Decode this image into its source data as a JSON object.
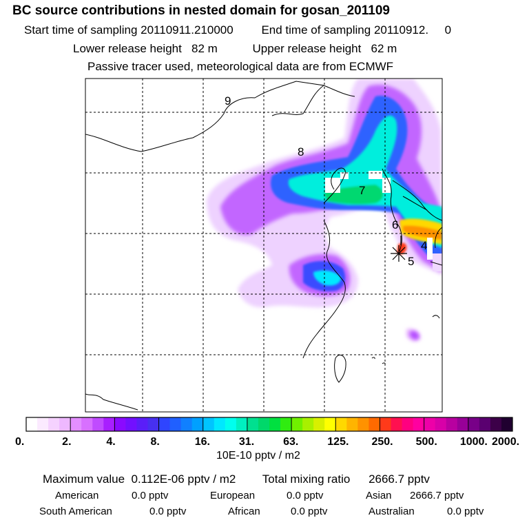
{
  "header": {
    "title": "BC  source contributions in nested domain for gosan_201109",
    "start_label": "Start time of sampling",
    "start_value": "20110911.210000",
    "end_label": "End time of sampling",
    "end_value": "20110912.     0",
    "lower_label": "Lower release height",
    "lower_value": "82 m",
    "upper_label": "Upper release height",
    "upper_value": "62 m",
    "tracer_note": "Passive tracer used, meteorological data are from ECMWF"
  },
  "map": {
    "trajectory_labels": [
      "9",
      "8",
      "7",
      "6",
      "4",
      "5"
    ],
    "receptor_icon": "star-marker-icon"
  },
  "chart_data": {
    "type": "heatmap",
    "title": "BC  source contributions in nested domain for gosan_201109",
    "colorbar_ticks": [
      "0.",
      "2.",
      "4.",
      "8.",
      "16.",
      "31.",
      "63.",
      "125.",
      "250.",
      "500.",
      "1000.",
      "2000."
    ],
    "colorbar_colors": [
      "#ffffff",
      "#fbeaff",
      "#f5d2ff",
      "#eeb8ff",
      "#e38fff",
      "#d870ff",
      "#c04bff",
      "#a81fff",
      "#8a0aff",
      "#7210ff",
      "#5a1ef8",
      "#4730f0",
      "#2f45ff",
      "#2060ff",
      "#1080ff",
      "#00a0ff",
      "#00c4ff",
      "#00e8ff",
      "#00ffee",
      "#00f0c0",
      "#00e090",
      "#00d86a",
      "#00e040",
      "#30ec10",
      "#70f000",
      "#a8f000",
      "#d8f000",
      "#ffff00",
      "#ffd800",
      "#ffb400",
      "#ff9200",
      "#ff6a00",
      "#ff3a1a",
      "#ff1050",
      "#ff0080",
      "#ff00a0",
      "#ee00a8",
      "#d800a8",
      "#b800a0",
      "#980098",
      "#780088",
      "#5a0070",
      "#3c0048",
      "#200030"
    ],
    "units": "10E-10 pptv / m2"
  },
  "stats": {
    "max_label": "Maximum value",
    "max_value": "0.112E-06 pptv / m2",
    "total_label": "Total mixing ratio",
    "total_value": "2666.7 pptv",
    "american_label": "American",
    "american_value": "0.0 pptv",
    "european_label": "European",
    "european_value": "0.0 pptv",
    "asian_label": "Asian",
    "asian_value": "2666.7 pptv",
    "south_american_label": "South American",
    "south_american_value": "0.0 pptv",
    "african_label": "African",
    "african_value": "0.0 pptv",
    "australian_label": "Australian",
    "australian_value": "0.0 pptv"
  }
}
